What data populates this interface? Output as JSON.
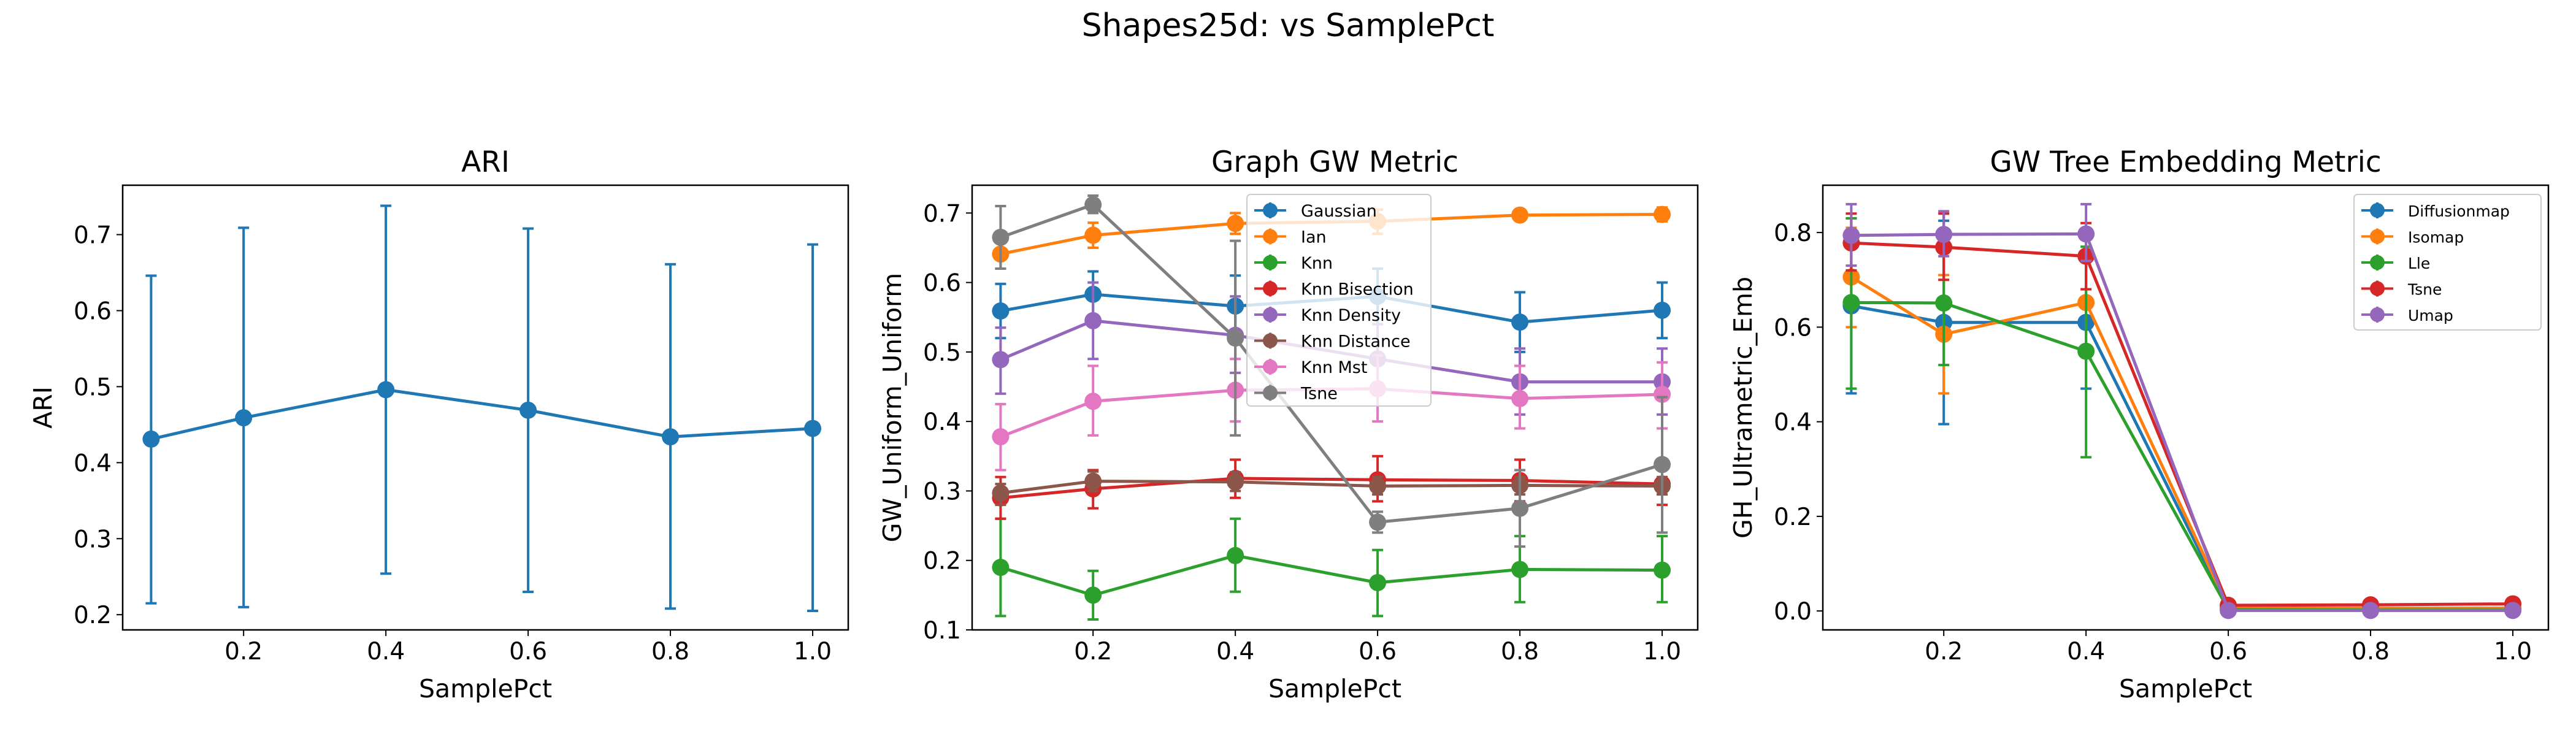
{
  "figure": {
    "title": "Shapes25d: vs SamplePct"
  },
  "chart_data": [
    {
      "type": "line",
      "title": "ARI",
      "xlabel": "SamplePct",
      "ylabel": "ARI",
      "xlim": [
        0.03,
        1.05
      ],
      "ylim": [
        0.18,
        0.765
      ],
      "xticks": [
        0.2,
        0.4,
        0.6,
        0.8,
        1.0
      ],
      "xtick_labels": [
        "0.2",
        "0.4",
        "0.6",
        "0.8",
        "1.0"
      ],
      "yticks": [
        0.2,
        0.3,
        0.4,
        0.5,
        0.6,
        0.7
      ],
      "ytick_labels": [
        "0.2",
        "0.3",
        "0.4",
        "0.5",
        "0.6",
        "0.7"
      ],
      "grid": false,
      "series": [
        {
          "color": "#1f77b4",
          "x": [
            0.07,
            0.2,
            0.4,
            0.6,
            0.8,
            1.0
          ],
          "values": [
            0.431,
            0.459,
            0.496,
            0.469,
            0.434,
            0.445
          ],
          "err_low": [
            0.215,
            0.21,
            0.254,
            0.23,
            0.208,
            0.205
          ],
          "err_high": [
            0.646,
            0.709,
            0.738,
            0.708,
            0.661,
            0.687
          ]
        }
      ]
    },
    {
      "type": "line",
      "title": "Graph GW Metric",
      "xlabel": "SamplePct",
      "ylabel": "GW_Uniform_Uniform",
      "xlim": [
        0.03,
        1.05
      ],
      "ylim": [
        0.1,
        0.74
      ],
      "xticks": [
        0.2,
        0.4,
        0.6,
        0.8,
        1.0
      ],
      "xtick_labels": [
        "0.2",
        "0.4",
        "0.6",
        "0.8",
        "1.0"
      ],
      "yticks": [
        0.1,
        0.2,
        0.3,
        0.4,
        0.5,
        0.6,
        0.7
      ],
      "ytick_labels": [
        "0.1",
        "0.2",
        "0.3",
        "0.4",
        "0.5",
        "0.6",
        "0.7"
      ],
      "grid": false,
      "legend": "top-center",
      "series": [
        {
          "name": "Gaussian",
          "color": "#1f77b4",
          "x": [
            0.07,
            0.2,
            0.4,
            0.6,
            0.8,
            1.0
          ],
          "values": [
            0.559,
            0.583,
            0.566,
            0.58,
            0.543,
            0.56
          ],
          "err_low": [
            0.52,
            0.55,
            0.52,
            0.54,
            0.5,
            0.52
          ],
          "err_high": [
            0.598,
            0.616,
            0.61,
            0.62,
            0.586,
            0.6
          ]
        },
        {
          "name": "Ian",
          "color": "#ff7f0e",
          "x": [
            0.07,
            0.2,
            0.4,
            0.6,
            0.8,
            1.0
          ],
          "values": [
            0.641,
            0.668,
            0.685,
            0.688,
            0.697,
            0.698
          ],
          "err_low": [
            0.62,
            0.65,
            0.67,
            0.67,
            0.69,
            0.688
          ],
          "err_high": [
            0.662,
            0.686,
            0.7,
            0.705,
            0.705,
            0.708
          ]
        },
        {
          "name": "Knn",
          "color": "#2ca02c",
          "x": [
            0.07,
            0.2,
            0.4,
            0.6,
            0.8,
            1.0
          ],
          "values": [
            0.19,
            0.15,
            0.207,
            0.168,
            0.187,
            0.186
          ],
          "err_low": [
            0.12,
            0.115,
            0.155,
            0.12,
            0.14,
            0.14
          ],
          "err_high": [
            0.26,
            0.185,
            0.26,
            0.215,
            0.235,
            0.235
          ]
        },
        {
          "name": "Knn Bisection",
          "color": "#d62728",
          "x": [
            0.07,
            0.2,
            0.4,
            0.6,
            0.8,
            1.0
          ],
          "values": [
            0.29,
            0.303,
            0.318,
            0.316,
            0.315,
            0.31
          ],
          "err_low": [
            0.26,
            0.275,
            0.29,
            0.285,
            0.285,
            0.28
          ],
          "err_high": [
            0.32,
            0.33,
            0.345,
            0.35,
            0.345,
            0.34
          ]
        },
        {
          "name": "Knn Density",
          "color": "#9467bd",
          "x": [
            0.07,
            0.2,
            0.4,
            0.6,
            0.8,
            1.0
          ],
          "values": [
            0.489,
            0.545,
            0.524,
            0.49,
            0.457,
            0.457
          ],
          "err_low": [
            0.44,
            0.49,
            0.47,
            0.44,
            0.41,
            0.41
          ],
          "err_high": [
            0.535,
            0.6,
            0.58,
            0.54,
            0.505,
            0.505
          ]
        },
        {
          "name": "Knn Distance",
          "color": "#8c564b",
          "x": [
            0.07,
            0.2,
            0.4,
            0.6,
            0.8,
            1.0
          ],
          "values": [
            0.297,
            0.314,
            0.313,
            0.307,
            0.308,
            0.307
          ],
          "err_low": [
            0.28,
            0.3,
            0.3,
            0.295,
            0.295,
            0.295
          ],
          "err_high": [
            0.31,
            0.328,
            0.327,
            0.32,
            0.32,
            0.32
          ]
        },
        {
          "name": "Knn Mst",
          "color": "#e377c2",
          "x": [
            0.07,
            0.2,
            0.4,
            0.6,
            0.8,
            1.0
          ],
          "values": [
            0.378,
            0.429,
            0.445,
            0.447,
            0.433,
            0.439
          ],
          "err_low": [
            0.33,
            0.38,
            0.4,
            0.4,
            0.39,
            0.39
          ],
          "err_high": [
            0.425,
            0.48,
            0.49,
            0.495,
            0.48,
            0.485
          ]
        },
        {
          "name": "Tsne",
          "color": "#7f7f7f",
          "x": [
            0.07,
            0.2,
            0.4,
            0.6,
            0.8,
            1.0
          ],
          "values": [
            0.665,
            0.712,
            0.52,
            0.255,
            0.275,
            0.338
          ],
          "err_low": [
            0.62,
            0.7,
            0.38,
            0.24,
            0.22,
            0.24
          ],
          "err_high": [
            0.71,
            0.725,
            0.66,
            0.27,
            0.33,
            0.435
          ]
        }
      ]
    },
    {
      "type": "line",
      "title": "GW Tree Embedding Metric",
      "xlabel": "SamplePct",
      "ylabel": "GH_Ultrametric_Emb",
      "xlim": [
        0.03,
        1.05
      ],
      "ylim": [
        -0.04,
        0.9
      ],
      "xticks": [
        0.2,
        0.4,
        0.6,
        0.8,
        1.0
      ],
      "xtick_labels": [
        "0.2",
        "0.4",
        "0.6",
        "0.8",
        "1.0"
      ],
      "yticks": [
        0.0,
        0.2,
        0.4,
        0.6,
        0.8
      ],
      "ytick_labels": [
        "0.0",
        "0.2",
        "0.4",
        "0.6",
        "0.8"
      ],
      "grid": false,
      "legend": "top-right",
      "series": [
        {
          "name": "Diffusionmap",
          "color": "#1f77b4",
          "x": [
            0.07,
            0.2,
            0.4,
            0.6,
            0.8,
            1.0
          ],
          "values": [
            0.645,
            0.61,
            0.61,
            0.005,
            0.003,
            0.003
          ],
          "err_low": [
            0.46,
            0.395,
            0.47,
            0.0,
            0.0,
            0.0
          ],
          "err_high": [
            0.83,
            0.825,
            0.75,
            0.01,
            0.006,
            0.006
          ]
        },
        {
          "name": "Isomap",
          "color": "#ff7f0e",
          "x": [
            0.07,
            0.2,
            0.4,
            0.6,
            0.8,
            1.0
          ],
          "values": [
            0.706,
            0.585,
            0.652,
            0.007,
            0.006,
            0.006
          ],
          "err_low": [
            0.6,
            0.46,
            0.55,
            0.0,
            0.0,
            0.0
          ],
          "err_high": [
            0.81,
            0.71,
            0.75,
            0.015,
            0.012,
            0.012
          ]
        },
        {
          "name": "Lle",
          "color": "#2ca02c",
          "x": [
            0.07,
            0.2,
            0.4,
            0.6,
            0.8,
            1.0
          ],
          "values": [
            0.652,
            0.651,
            0.549,
            0.003,
            0.002,
            0.002
          ],
          "err_low": [
            0.47,
            0.52,
            0.325,
            0.0,
            0.0,
            0.0
          ],
          "err_high": [
            0.83,
            0.78,
            0.77,
            0.006,
            0.004,
            0.004
          ]
        },
        {
          "name": "Tsne",
          "color": "#d62728",
          "x": [
            0.07,
            0.2,
            0.4,
            0.6,
            0.8,
            1.0
          ],
          "values": [
            0.778,
            0.769,
            0.75,
            0.012,
            0.013,
            0.015
          ],
          "err_low": [
            0.72,
            0.7,
            0.68,
            0.005,
            0.008,
            0.01
          ],
          "err_high": [
            0.84,
            0.84,
            0.82,
            0.02,
            0.018,
            0.02
          ]
        },
        {
          "name": "Umap",
          "color": "#9467bd",
          "x": [
            0.07,
            0.2,
            0.4,
            0.6,
            0.8,
            1.0
          ],
          "values": [
            0.794,
            0.796,
            0.797,
            0.001,
            0.001,
            0.001
          ],
          "err_low": [
            0.73,
            0.75,
            0.74,
            0.0,
            0.0,
            0.0
          ],
          "err_high": [
            0.86,
            0.845,
            0.86,
            0.003,
            0.003,
            0.003
          ]
        }
      ]
    }
  ]
}
